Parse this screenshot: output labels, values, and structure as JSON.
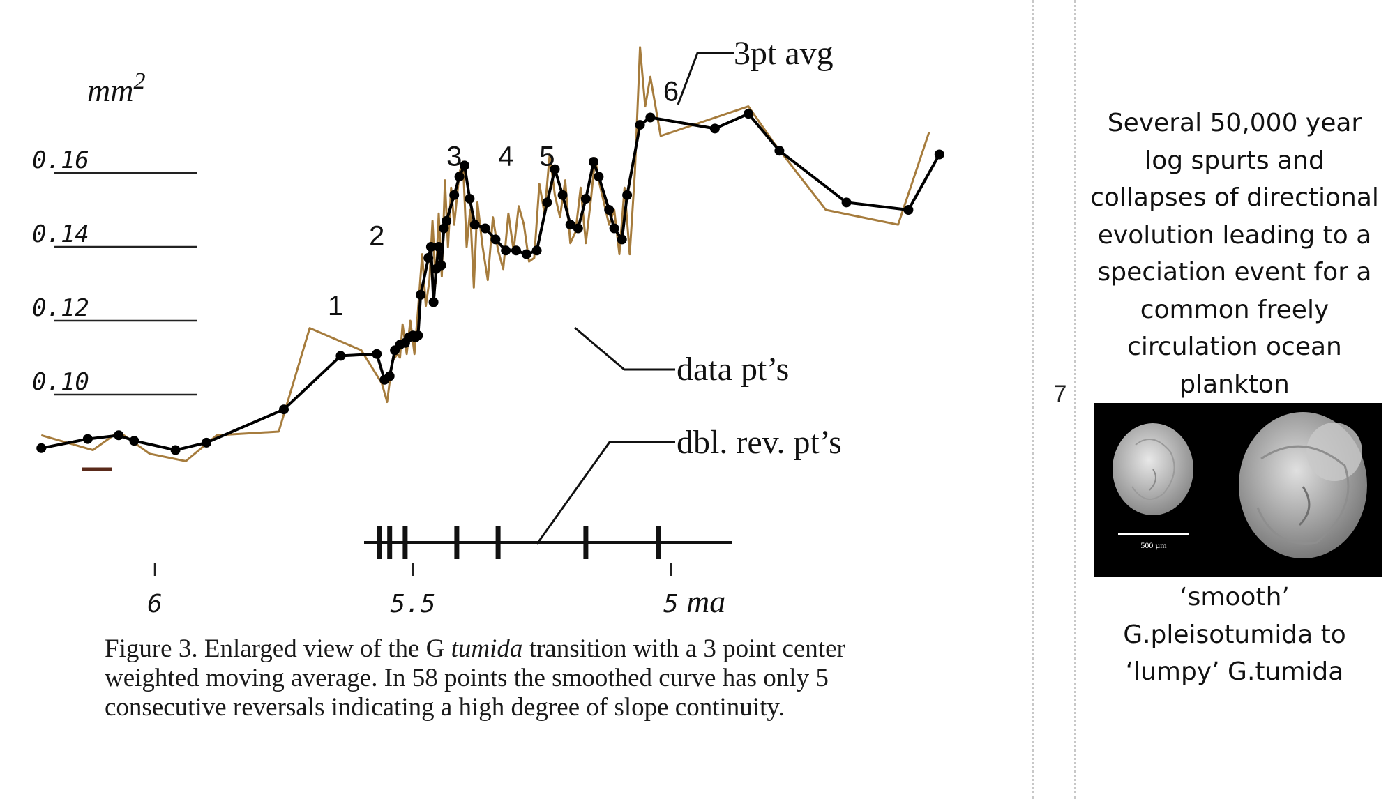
{
  "chart_data": {
    "type": "line",
    "ylabel": "mm²",
    "y_ticks": [
      "0.16",
      "0.14",
      "0.12",
      "0.10"
    ],
    "x_ticks": [
      "6",
      "5.5",
      "5"
    ],
    "x_unit": "ma",
    "x_reversed": true,
    "series": [
      {
        "name": "3pt avg",
        "color": "#000000",
        "marker": "dot",
        "points": [
          [
            6.22,
            0.0855
          ],
          [
            6.13,
            0.088
          ],
          [
            6.07,
            0.089
          ],
          [
            6.04,
            0.0875
          ],
          [
            5.96,
            0.085
          ],
          [
            5.9,
            0.087
          ],
          [
            5.75,
            0.096
          ],
          [
            5.64,
            0.1105
          ],
          [
            5.57,
            0.111
          ],
          [
            5.555,
            0.104
          ],
          [
            5.545,
            0.105
          ],
          [
            5.535,
            0.112
          ],
          [
            5.525,
            0.1135
          ],
          [
            5.515,
            0.114
          ],
          [
            5.508,
            0.1155
          ],
          [
            5.5,
            0.116
          ],
          [
            5.495,
            0.1155
          ],
          [
            5.49,
            0.116
          ],
          [
            5.485,
            0.127
          ],
          [
            5.47,
            0.137
          ],
          [
            5.465,
            0.14
          ],
          [
            5.46,
            0.125
          ],
          [
            5.455,
            0.134
          ],
          [
            5.45,
            0.14
          ],
          [
            5.445,
            0.135
          ],
          [
            5.44,
            0.145
          ],
          [
            5.435,
            0.147
          ],
          [
            5.42,
            0.154
          ],
          [
            5.41,
            0.159
          ],
          [
            5.4,
            0.162
          ],
          [
            5.39,
            0.153
          ],
          [
            5.38,
            0.146
          ],
          [
            5.36,
            0.145
          ],
          [
            5.34,
            0.142
          ],
          [
            5.32,
            0.139
          ],
          [
            5.3,
            0.139
          ],
          [
            5.28,
            0.138
          ],
          [
            5.26,
            0.139
          ],
          [
            5.24,
            0.152
          ],
          [
            5.225,
            0.161
          ],
          [
            5.21,
            0.154
          ],
          [
            5.195,
            0.146
          ],
          [
            5.18,
            0.145
          ],
          [
            5.165,
            0.153
          ],
          [
            5.15,
            0.163
          ],
          [
            5.14,
            0.159
          ],
          [
            5.12,
            0.15
          ],
          [
            5.11,
            0.145
          ],
          [
            5.095,
            0.142
          ],
          [
            5.085,
            0.154
          ],
          [
            5.06,
            0.173
          ],
          [
            5.04,
            0.175
          ],
          [
            4.915,
            0.172
          ],
          [
            4.85,
            0.176
          ],
          [
            4.79,
            0.166
          ],
          [
            4.66,
            0.152
          ],
          [
            4.54,
            0.15
          ],
          [
            4.48,
            0.165
          ]
        ]
      },
      {
        "name": "data pt’s",
        "color": "#a67c3d",
        "marker": "none",
        "points": [
          [
            6.22,
            0.089
          ],
          [
            6.12,
            0.085
          ],
          [
            6.07,
            0.09
          ],
          [
            6.01,
            0.084
          ],
          [
            5.94,
            0.082
          ],
          [
            5.88,
            0.089
          ],
          [
            5.76,
            0.09
          ],
          [
            5.7,
            0.118
          ],
          [
            5.6,
            0.112
          ],
          [
            5.56,
            0.103
          ],
          [
            5.55,
            0.098
          ],
          [
            5.54,
            0.109
          ],
          [
            5.53,
            0.111
          ],
          [
            5.525,
            0.11
          ],
          [
            5.52,
            0.119
          ],
          [
            5.512,
            0.111
          ],
          [
            5.505,
            0.12
          ],
          [
            5.497,
            0.111
          ],
          [
            5.49,
            0.123
          ],
          [
            5.482,
            0.138
          ],
          [
            5.475,
            0.124
          ],
          [
            5.468,
            0.131
          ],
          [
            5.462,
            0.147
          ],
          [
            5.456,
            0.13
          ],
          [
            5.45,
            0.149
          ],
          [
            5.444,
            0.132
          ],
          [
            5.438,
            0.158
          ],
          [
            5.432,
            0.14
          ],
          [
            5.426,
            0.156
          ],
          [
            5.42,
            0.146
          ],
          [
            5.41,
            0.16
          ],
          [
            5.403,
            0.163
          ],
          [
            5.396,
            0.14
          ],
          [
            5.389,
            0.15
          ],
          [
            5.382,
            0.129
          ],
          [
            5.375,
            0.152
          ],
          [
            5.365,
            0.14
          ],
          [
            5.355,
            0.131
          ],
          [
            5.345,
            0.148
          ],
          [
            5.335,
            0.139
          ],
          [
            5.325,
            0.134
          ],
          [
            5.315,
            0.149
          ],
          [
            5.305,
            0.139
          ],
          [
            5.295,
            0.151
          ],
          [
            5.285,
            0.146
          ],
          [
            5.275,
            0.136
          ],
          [
            5.265,
            0.137
          ],
          [
            5.255,
            0.157
          ],
          [
            5.245,
            0.149
          ],
          [
            5.235,
            0.165
          ],
          [
            5.225,
            0.154
          ],
          [
            5.215,
            0.148
          ],
          [
            5.205,
            0.158
          ],
          [
            5.195,
            0.141
          ],
          [
            5.185,
            0.144
          ],
          [
            5.175,
            0.156
          ],
          [
            5.165,
            0.141
          ],
          [
            5.155,
            0.153
          ],
          [
            5.147,
            0.164
          ],
          [
            5.14,
            0.158
          ],
          [
            5.13,
            0.152
          ],
          [
            5.12,
            0.146
          ],
          [
            5.11,
            0.15
          ],
          [
            5.1,
            0.138
          ],
          [
            5.09,
            0.156
          ],
          [
            5.08,
            0.138
          ],
          [
            5.07,
            0.16
          ],
          [
            5.06,
            0.194
          ],
          [
            5.05,
            0.178
          ],
          [
            5.04,
            0.186
          ],
          [
            5.02,
            0.17
          ],
          [
            4.85,
            0.178
          ],
          [
            4.8,
            0.168
          ],
          [
            4.7,
            0.15
          ],
          [
            4.56,
            0.146
          ],
          [
            4.5,
            0.171
          ]
        ]
      }
    ],
    "reversal_ticks": [
      5.565,
      5.545,
      5.515,
      5.415,
      5.335,
      5.165,
      5.025
    ],
    "annotations": [
      {
        "text": "1",
        "x": 5.65,
        "y": 0.1215
      },
      {
        "text": "2",
        "x": 5.57,
        "y": 0.1405
      },
      {
        "text": "3",
        "x": 5.42,
        "y": 0.162
      },
      {
        "text": "4",
        "x": 5.32,
        "y": 0.162
      },
      {
        "text": "5",
        "x": 5.24,
        "y": 0.162
      },
      {
        "text": "6",
        "x": 5.0,
        "y": 0.1795
      }
    ],
    "callouts": {
      "avg": "3pt avg",
      "data": "data pt’s",
      "dbl": "dbl. rev. pt’s"
    }
  },
  "caption": {
    "prefix": "Figure 3. Enlarged view of the G ",
    "species": "tumida",
    "suffix": " transition with a 3 point center weighted moving average.   In 58 points the smoothed curve has only 5 consecutive reversals indicating a high degree of slope continuity."
  },
  "slide_number": "7",
  "side_text": "Several 50,000 year log spurts and collapses of directional evolution leading to a speciation event for a common freely circulation ocean plankton",
  "photo": {
    "scale_label": "500 µm"
  },
  "side_caption": "‘smooth’ G.pleisotumida to ‘lumpy’ G.tumida"
}
